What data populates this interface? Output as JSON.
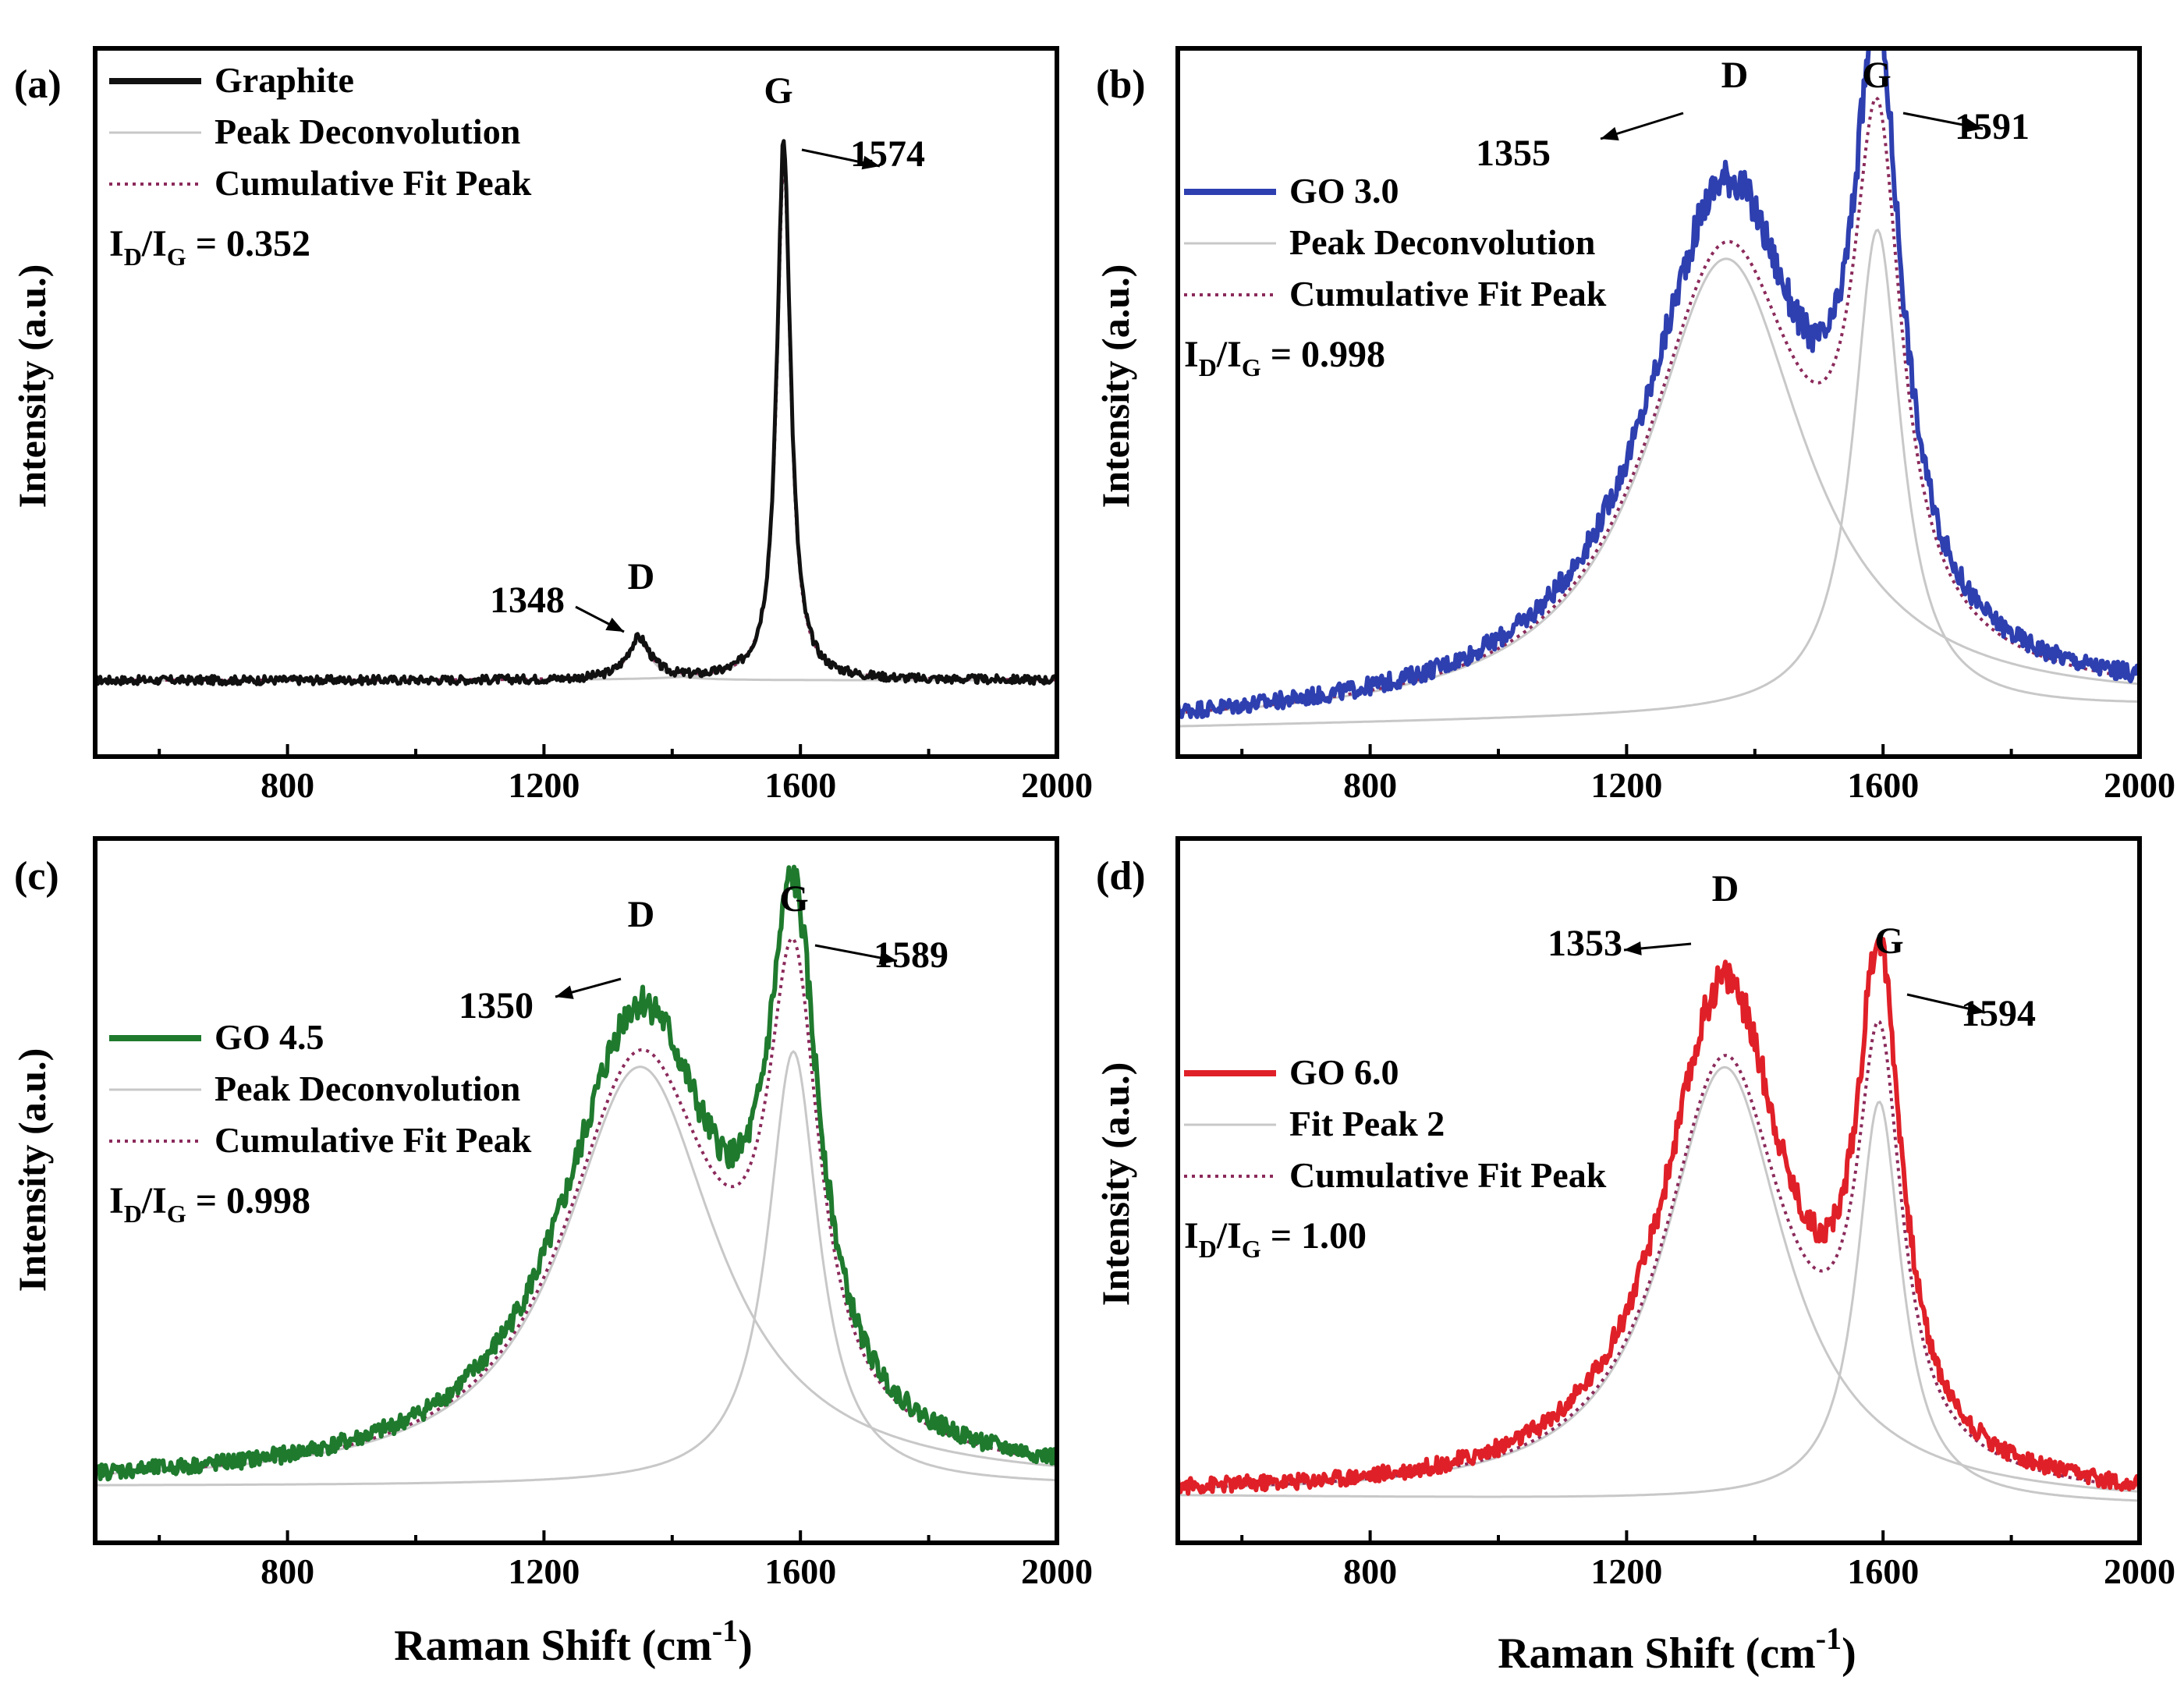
{
  "figure": {
    "x_title_main": "Raman Shift (cm",
    "x_title_sup": "-1",
    "x_title_close": ")"
  },
  "chart_data": [
    {
      "panel": "(a)",
      "type": "line",
      "xlabel": "Raman Shift (cm-1)",
      "ylabel": "Intensity (a.u.)",
      "xlim": [
        500,
        2000
      ],
      "ylim": [
        -0.15,
        1.15
      ],
      "xticks": [
        800,
        1200,
        1600,
        2000
      ],
      "legend": [
        {
          "label": "Graphite",
          "style": "solid-thick",
          "color": "#111111"
        },
        {
          "label": "Peak Deconvolution",
          "style": "solid-thin",
          "color": "#c8c8c8"
        },
        {
          "label": "Cumulative Fit Peak",
          "style": "dotted",
          "color": "#8b2a5b"
        }
      ],
      "ratio": {
        "label": "I",
        "sub1": "D",
        "mid": "/I",
        "sub2": "G",
        "value": " = 0.352"
      },
      "series_color": "#111111",
      "noise": 0.008,
      "baseline": {
        "y0": -0.01,
        "slope": 0.0
      },
      "peaks": [
        {
          "name": "D",
          "position": 1348,
          "width": 22,
          "height": 0.075
        },
        {
          "name": "G",
          "position": 1574,
          "width": 13,
          "height": 0.99
        }
      ],
      "fit_scale": 0.96,
      "annotations": [
        {
          "letter": "D",
          "value": "1348"
        },
        {
          "letter": "G",
          "value": "1574"
        }
      ]
    },
    {
      "panel": "(b)",
      "type": "line",
      "xlabel": "Raman Shift (cm-1)",
      "ylabel": "Intensity (a.u.)",
      "xlim": [
        500,
        2000
      ],
      "ylim": [
        -0.08,
        1.12
      ],
      "xticks": [
        800,
        1200,
        1600,
        2000
      ],
      "legend": [
        {
          "label": "GO 3.0",
          "style": "solid-thick",
          "color": "#2e3fb0"
        },
        {
          "label": "Peak Deconvolution",
          "style": "solid-thin",
          "color": "#c8c8c8"
        },
        {
          "label": "Cumulative Fit Peak",
          "style": "dotted",
          "color": "#8b2a5b"
        }
      ],
      "ratio": {
        "label": "I",
        "sub1": "D",
        "mid": "/I",
        "sub2": "G",
        "value": " = 0.998"
      },
      "series_color": "#2e3fb0",
      "noise": 0.014,
      "baseline": {
        "y0": -0.03,
        "slope": 2.22e-05
      },
      "peaks": [
        {
          "name": "D",
          "position": 1355,
          "width": 150,
          "height": 0.88
        },
        {
          "name": "G",
          "position": 1591,
          "width": 45,
          "height": 0.93
        }
      ],
      "fit_scale": 0.88,
      "annotations": [
        {
          "letter": "D",
          "value": "1355"
        },
        {
          "letter": "G",
          "value": "1591"
        }
      ]
    },
    {
      "panel": "(c)",
      "type": "line",
      "xlabel": "Raman Shift (cm-1)",
      "ylabel": "Intensity (a.u.)",
      "xlim": [
        500,
        2000
      ],
      "ylim": [
        -0.12,
        1.12
      ],
      "xticks": [
        800,
        1200,
        1600,
        2000
      ],
      "legend": [
        {
          "label": "GO 4.5",
          "style": "solid-thick",
          "color": "#1f7a2e"
        },
        {
          "label": "Peak Deconvolution",
          "style": "solid-thin",
          "color": "#c8c8c8"
        },
        {
          "label": "Cumulative Fit Peak",
          "style": "dotted",
          "color": "#8b2a5b"
        }
      ],
      "ratio": {
        "label": "I",
        "sub1": "D",
        "mid": "/I",
        "sub2": "G",
        "value": " = 0.998"
      },
      "series_color": "#1f7a2e",
      "noise": 0.014,
      "baseline": {
        "y0": -0.02,
        "slope": 0.0
      },
      "peaks": [
        {
          "name": "D",
          "position": 1350,
          "width": 145,
          "height": 0.82
        },
        {
          "name": "G",
          "position": 1589,
          "width": 48,
          "height": 0.85
        }
      ],
      "fit_scale": 0.9,
      "annotations": [
        {
          "letter": "D",
          "value": "1350"
        },
        {
          "letter": "G",
          "value": "1589"
        }
      ]
    },
    {
      "panel": "(d)",
      "type": "line",
      "xlabel": "Raman Shift (cm-1)",
      "ylabel": "Intensity (a.u.)",
      "xlim": [
        500,
        2000
      ],
      "ylim": [
        -0.09,
        1.18
      ],
      "xticks": [
        800,
        1200,
        1600,
        2000
      ],
      "legend": [
        {
          "label": "GO 6.0",
          "style": "solid-thick",
          "color": "#e02028"
        },
        {
          "label": "Fit Peak 2",
          "style": "solid-thin",
          "color": "#c8c8c8"
        },
        {
          "label": "Cumulative Fit Peak",
          "style": "dotted",
          "color": "#8b2a5b"
        }
      ],
      "ratio": {
        "label": "I",
        "sub1": "D",
        "mid": "/I",
        "sub2": "G",
        "value": " = 1.00"
      },
      "series_color": "#e02028",
      "noise": 0.014,
      "baseline": {
        "y0": -0.005,
        "slope": -1.11e-05
      },
      "peaks": [
        {
          "name": "D",
          "position": 1353,
          "width": 115,
          "height": 0.92
        },
        {
          "name": "G",
          "position": 1594,
          "width": 42,
          "height": 0.85
        }
      ],
      "fit_scale": 0.85,
      "annotations": [
        {
          "letter": "D",
          "value": "1353"
        },
        {
          "letter": "G",
          "value": "1594"
        }
      ]
    }
  ]
}
